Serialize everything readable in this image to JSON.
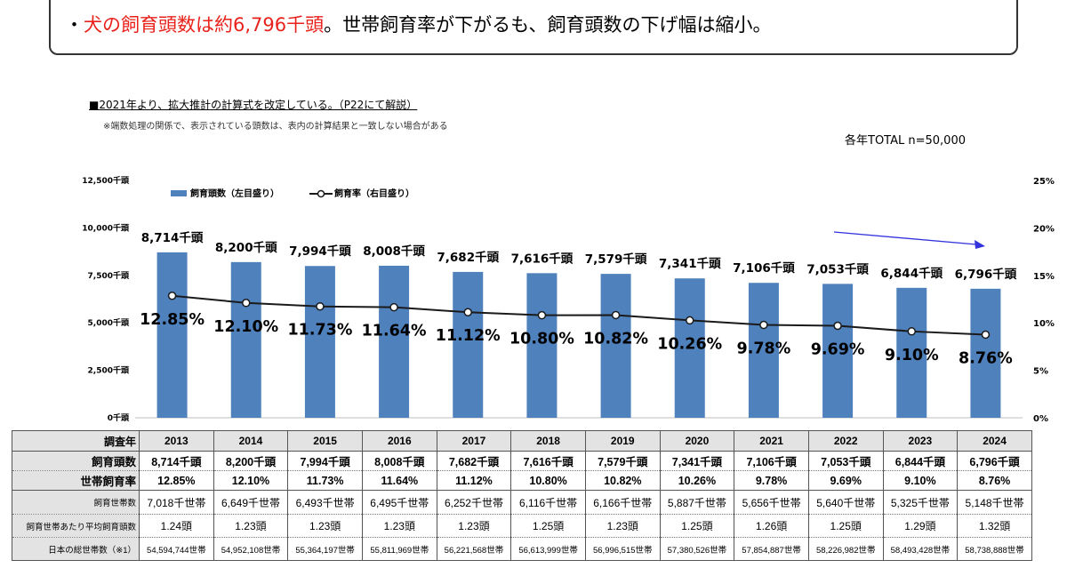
{
  "headline": {
    "bullet": "・",
    "red_text": "犬の飼育頭数は約6,796千頭",
    "rest_text": "。世帯飼育率が下がるも、飼育頭数の下げ幅は縮小。"
  },
  "note_main": "■2021年より、拡大推計の計算式を改定している。（P22にて解説）",
  "note_sub": "※端数処理の関係で、表示されている頭数は、表内の計算結果と一致しない場合がある",
  "sample_note": "各年TOTAL n=50,000",
  "colors": {
    "bar": "#4f81bd",
    "line": "#1a1a1a",
    "arrow": "#3333dd",
    "header_bg": "#e3e3e3"
  },
  "chart_data": {
    "type": "bar",
    "categories": [
      "2013",
      "2014",
      "2015",
      "2016",
      "2017",
      "2018",
      "2019",
      "2020",
      "2021",
      "2022",
      "2023",
      "2024"
    ],
    "series": [
      {
        "name": "飼育頭数（左目盛り）",
        "type": "bar",
        "axis": "left",
        "values": [
          8714,
          8200,
          7994,
          8008,
          7682,
          7616,
          7579,
          7341,
          7106,
          7053,
          6844,
          6796
        ],
        "labels": [
          "8,714千頭",
          "8,200千頭",
          "7,994千頭",
          "8,008千頭",
          "7,682千頭",
          "7,616千頭",
          "7,579千頭",
          "7,341千頭",
          "7,106千頭",
          "7,053千頭",
          "6,844千頭",
          "6,796千頭"
        ]
      },
      {
        "name": "飼育率（右目盛り）",
        "type": "line",
        "axis": "right",
        "values": [
          12.85,
          12.1,
          11.73,
          11.64,
          11.12,
          10.8,
          10.82,
          10.26,
          9.78,
          9.69,
          9.1,
          8.76
        ],
        "labels": [
          "12.85%",
          "12.10%",
          "11.73%",
          "11.64%",
          "11.12%",
          "10.80%",
          "10.82%",
          "10.26%",
          "9.78%",
          "9.69%",
          "9.10%",
          "8.76%"
        ]
      }
    ],
    "left_axis": {
      "ylim": [
        0,
        12500
      ],
      "ticks": [
        "0千頭",
        "2,500千頭",
        "5,000千頭",
        "7,500千頭",
        "10,000千頭",
        "12,500千頭"
      ]
    },
    "right_axis": {
      "ylim": [
        0,
        25
      ],
      "ticks": [
        "0%",
        "5%",
        "10%",
        "15%",
        "20%",
        "25%"
      ]
    },
    "legend_position": "top-left",
    "grid": false
  },
  "table": {
    "rows": [
      {
        "header": "調査年",
        "cells": [
          "2013",
          "2014",
          "2015",
          "2016",
          "2017",
          "2018",
          "2019",
          "2020",
          "2021",
          "2022",
          "2023",
          "2024"
        ]
      },
      {
        "header": "飼育頭数",
        "cells": [
          "8,714千頭",
          "8,200千頭",
          "7,994千頭",
          "8,008千頭",
          "7,682千頭",
          "7,616千頭",
          "7,579千頭",
          "7,341千頭",
          "7,106千頭",
          "7,053千頭",
          "6,844千頭",
          "6,796千頭"
        ]
      },
      {
        "header": "世帯飼育率",
        "cells": [
          "12.85%",
          "12.10%",
          "11.73%",
          "11.64%",
          "11.12%",
          "10.80%",
          "10.82%",
          "10.26%",
          "9.78%",
          "9.69%",
          "9.10%",
          "8.76%"
        ]
      },
      {
        "header": "飼育世帯数",
        "cells": [
          "7,018千世帯",
          "6,649千世帯",
          "6,493千世帯",
          "6,495千世帯",
          "6,252千世帯",
          "6,116千世帯",
          "6,166千世帯",
          "5,887千世帯",
          "5,656千世帯",
          "5,640千世帯",
          "5,325千世帯",
          "5,148千世帯"
        ]
      },
      {
        "header": "飼育世帯あたり平均飼育頭数",
        "cells": [
          "1.24頭",
          "1.23頭",
          "1.23頭",
          "1.23頭",
          "1.23頭",
          "1.25頭",
          "1.23頭",
          "1.25頭",
          "1.26頭",
          "1.25頭",
          "1.29頭",
          "1.32頭"
        ]
      },
      {
        "header": "日本の総世帯数（※1）",
        "cells": [
          "54,594,744世帯",
          "54,952,108世帯",
          "55,364,197世帯",
          "55,811,969世帯",
          "56,221,568世帯",
          "56,613,999世帯",
          "56,996,515世帯",
          "57,380,526世帯",
          "57,854,887世帯",
          "58,226,982世帯",
          "58,493,428世帯",
          "58,738,888世帯"
        ]
      }
    ]
  }
}
